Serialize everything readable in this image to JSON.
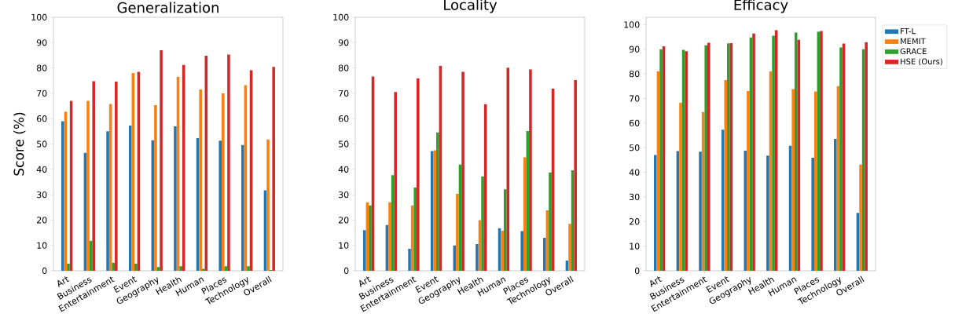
{
  "chart_data": [
    {
      "type": "bar",
      "title": "Generalization",
      "ylabel": "Score (%)",
      "categories": [
        "Art",
        "Business",
        "Entertainment",
        "Event",
        "Geography",
        "Health",
        "Human",
        "Places",
        "Technology",
        "Overall"
      ],
      "ylim": [
        0,
        100
      ],
      "yticks": [
        0,
        10,
        20,
        30,
        40,
        50,
        60,
        70,
        80,
        90,
        100
      ],
      "series": [
        {
          "color": "#1f77b4",
          "values": [
            59,
            46.5,
            55,
            57.3,
            51.5,
            57,
            52.3,
            51.3,
            49.6,
            31.7
          ]
        },
        {
          "color": "#ff7f0e",
          "values": [
            62.8,
            67,
            65.8,
            78,
            65.3,
            76.5,
            71.5,
            70,
            73.2,
            51.8
          ]
        },
        {
          "color": "#2ca02c",
          "values": [
            2.8,
            11.8,
            3.2,
            2.8,
            1.5,
            1.8,
            0.8,
            1.8,
            1.8,
            0.3
          ]
        },
        {
          "color": "#d62728",
          "values": [
            67,
            74.8,
            74.6,
            78.5,
            87,
            81.2,
            84.8,
            85.3,
            79.1,
            80.4
          ]
        }
      ]
    },
    {
      "type": "bar",
      "title": "Locality",
      "categories": [
        "Art",
        "Business",
        "Entertainment",
        "Event",
        "Geography",
        "Health",
        "Human",
        "Places",
        "Technology",
        "Overall"
      ],
      "ylim": [
        0,
        100
      ],
      "yticks": [
        0,
        10,
        20,
        30,
        40,
        50,
        60,
        70,
        80,
        90,
        100
      ],
      "series": [
        {
          "color": "#1f77b4",
          "values": [
            16,
            18,
            8.7,
            47.2,
            10,
            10.5,
            16.8,
            15.6,
            13,
            4
          ]
        },
        {
          "color": "#ff7f0e",
          "values": [
            27,
            27,
            25.8,
            47.5,
            30.3,
            20,
            15.8,
            44.7,
            23.8,
            18.5
          ]
        },
        {
          "color": "#2ca02c",
          "values": [
            25.8,
            37.7,
            32.8,
            54.6,
            41.9,
            37.2,
            32.1,
            55.1,
            38.8,
            39.6
          ]
        },
        {
          "color": "#d62728",
          "values": [
            76.6,
            70.5,
            75.9,
            80.9,
            78.5,
            65.7,
            80.1,
            79.4,
            71.8,
            75.2
          ]
        }
      ]
    },
    {
      "type": "bar",
      "title": "Efficacy",
      "categories": [
        "Art",
        "Business",
        "Entertainment",
        "Event",
        "Geography",
        "Health",
        "Human",
        "Places",
        "Technology",
        "Overall"
      ],
      "ylim": [
        0,
        103
      ],
      "yticks": [
        0,
        10,
        20,
        30,
        40,
        50,
        60,
        70,
        80,
        90,
        100
      ],
      "legend": "right",
      "series": [
        {
          "name": "FT-L",
          "color": "#1f77b4",
          "values": [
            47,
            48.6,
            48.4,
            57.3,
            48.8,
            46.8,
            50.8,
            45.9,
            53.6,
            23.5
          ]
        },
        {
          "name": "MEMIT",
          "color": "#ff7f0e",
          "values": [
            81,
            68.2,
            64.5,
            77.5,
            73,
            81,
            73.8,
            72.9,
            75,
            43.1
          ]
        },
        {
          "name": "GRACE",
          "color": "#2ca02c",
          "values": [
            90,
            89.8,
            91.6,
            92.4,
            94.8,
            95.5,
            96.8,
            97.2,
            90.7,
            90
          ]
        },
        {
          "name": "HSE (Ours)",
          "color": "#d62728",
          "values": [
            91.2,
            89.2,
            92.6,
            92.5,
            96.4,
            97.8,
            93.8,
            97.4,
            92.3,
            92.9
          ]
        }
      ]
    }
  ]
}
